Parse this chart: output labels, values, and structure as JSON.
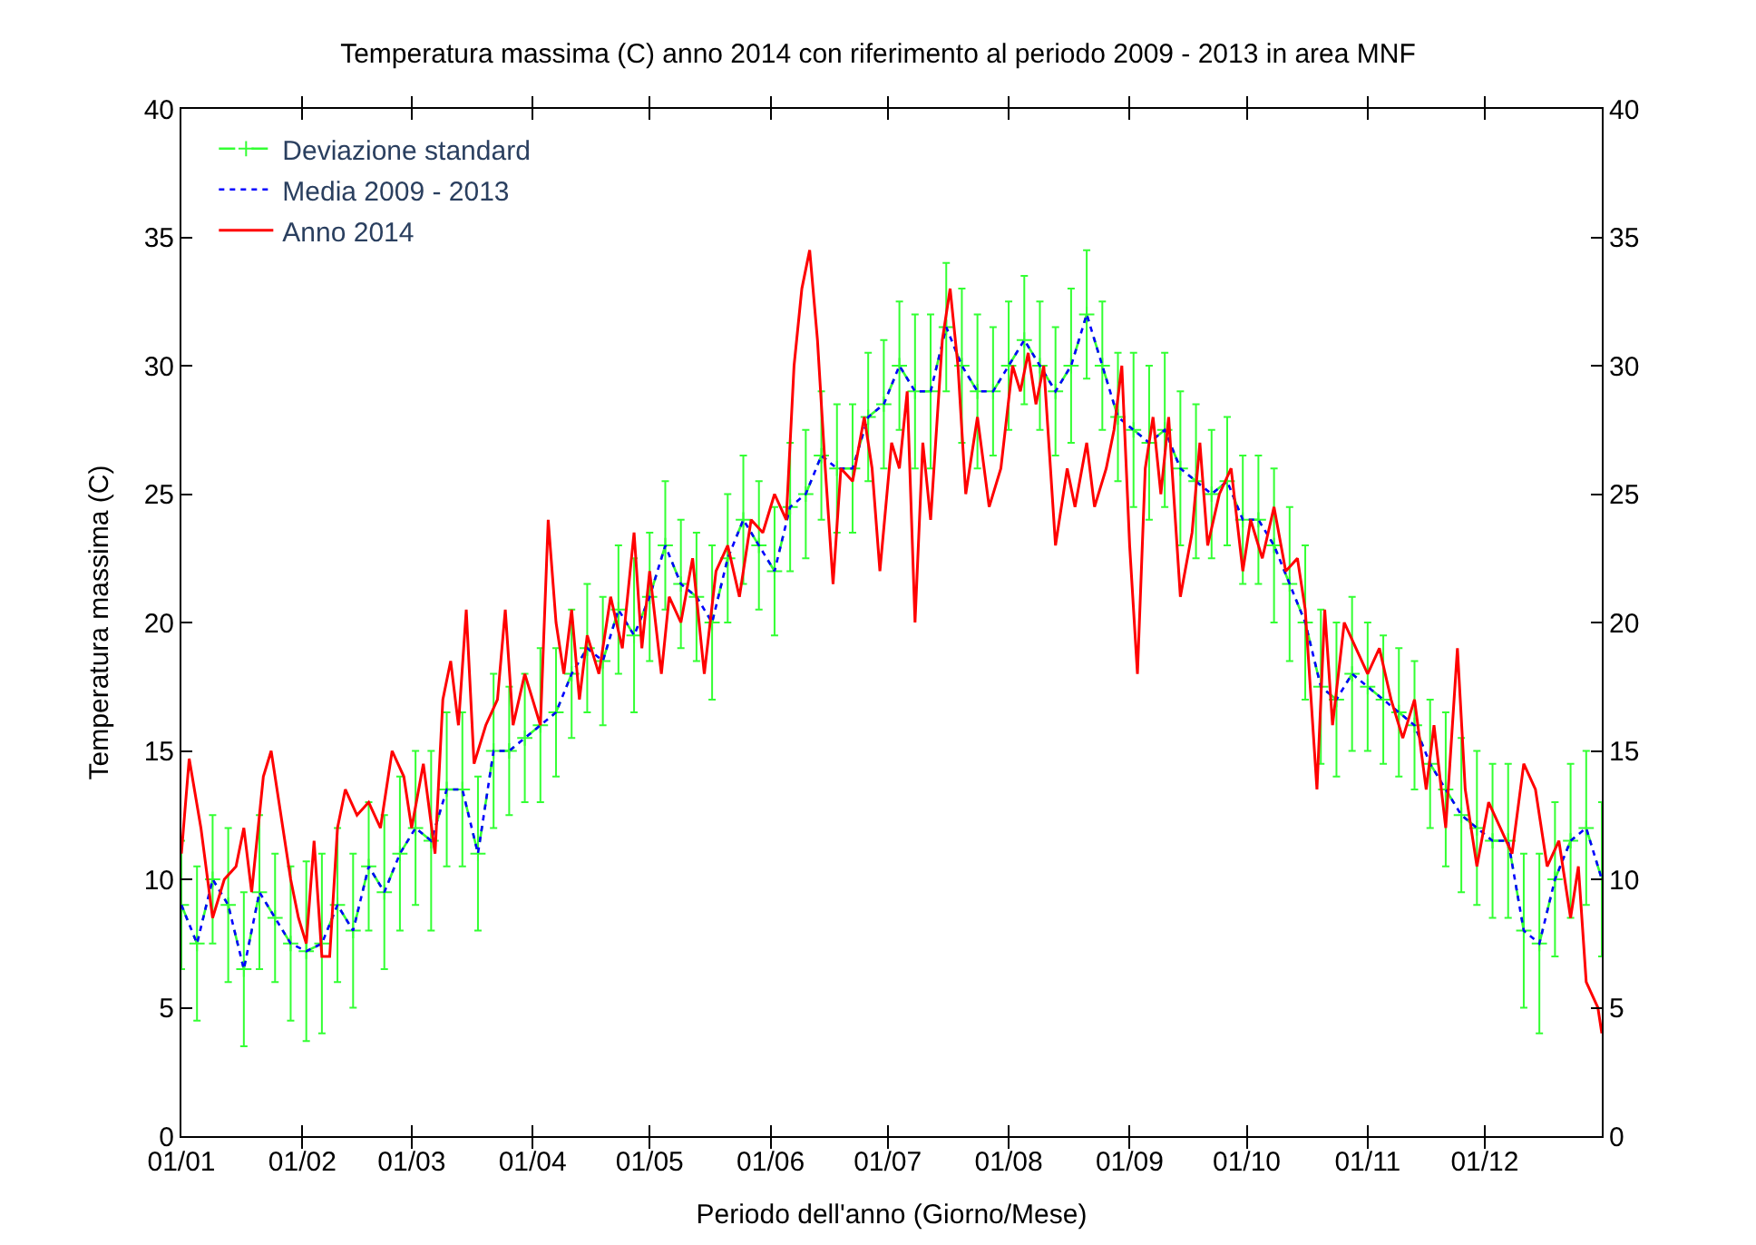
{
  "chart_data": {
    "type": "line",
    "title": "Temperatura massima (C) anno 2014 con riferimento al periodo 2009 - 2013 in area MNF",
    "xlabel": "Periodo dell'anno (Giorno/Mese)",
    "ylabel": "Temperatura massima (C)",
    "xlim": [
      "--01-01",
      "--12-31"
    ],
    "xticks": [
      {
        "value": "--01-01",
        "label": "01/01"
      },
      {
        "value": "--02-01",
        "label": "01/02"
      },
      {
        "value": "--03-01",
        "label": "01/03"
      },
      {
        "value": "--04-01",
        "label": "01/04"
      },
      {
        "value": "--05-01",
        "label": "01/05"
      },
      {
        "value": "--06-01",
        "label": "01/06"
      },
      {
        "value": "--07-01",
        "label": "01/07"
      },
      {
        "value": "--08-01",
        "label": "01/08"
      },
      {
        "value": "--09-01",
        "label": "01/09"
      },
      {
        "value": "--10-01",
        "label": "01/10"
      },
      {
        "value": "--11-01",
        "label": "01/11"
      },
      {
        "value": "--12-01",
        "label": "01/12"
      }
    ],
    "ylim": [
      0,
      40
    ],
    "yticks": [
      0,
      5,
      10,
      15,
      20,
      25,
      30,
      35,
      40
    ],
    "y2lim": [
      0,
      40
    ],
    "y2ticks": [
      0,
      5,
      10,
      15,
      20,
      25,
      30,
      35,
      40
    ],
    "grid": false,
    "legend": "top left",
    "series": [
      {
        "name": "Deviazione standard",
        "color": "#33ff33",
        "line_style": "dashed",
        "marker": "cross",
        "x": [
          "--01-01",
          "--01-05",
          "--01-09",
          "--01-13",
          "--01-17",
          "--01-21",
          "--01-25",
          "--01-29",
          "--02-02",
          "--02-06",
          "--02-10",
          "--02-14",
          "--02-18",
          "--02-22",
          "--02-26",
          "--03-02",
          "--03-06",
          "--03-10",
          "--03-14",
          "--03-18",
          "--03-22",
          "--03-26",
          "--03-30",
          "--04-03",
          "--04-07",
          "--04-11",
          "--04-15",
          "--04-19",
          "--04-23",
          "--04-27",
          "--05-01",
          "--05-05",
          "--05-09",
          "--05-13",
          "--05-17",
          "--05-21",
          "--05-25",
          "--05-29",
          "--06-02",
          "--06-06",
          "--06-10",
          "--06-14",
          "--06-18",
          "--06-22",
          "--06-26",
          "--06-30",
          "--07-04",
          "--07-08",
          "--07-12",
          "--07-16",
          "--07-20",
          "--07-24",
          "--07-28",
          "--08-01",
          "--08-05",
          "--08-09",
          "--08-13",
          "--08-17",
          "--08-21",
          "--08-25",
          "--08-29",
          "--09-02",
          "--09-06",
          "--09-10",
          "--09-14",
          "--09-18",
          "--09-22",
          "--09-26",
          "--09-30",
          "--10-04",
          "--10-08",
          "--10-12",
          "--10-16",
          "--10-20",
          "--10-24",
          "--10-28",
          "--11-01",
          "--11-05",
          "--11-09",
          "--11-13",
          "--11-17",
          "--11-21",
          "--11-25",
          "--11-29",
          "--12-03",
          "--12-07",
          "--12-11",
          "--12-15",
          "--12-19",
          "--12-23",
          "--12-27",
          "--12-31"
        ],
        "values": [
          9,
          7.5,
          10,
          9,
          6.5,
          9.5,
          8.5,
          7.5,
          7.2,
          7.5,
          9,
          8,
          10.5,
          9.5,
          11,
          12,
          11.5,
          13.5,
          13.5,
          11,
          15,
          15,
          15.5,
          16,
          16.5,
          18,
          19,
          18.5,
          20.5,
          19.5,
          21,
          23,
          21.5,
          21,
          20,
          22.5,
          24,
          23,
          22,
          24.5,
          25,
          26.5,
          26,
          26,
          28,
          28.5,
          30,
          29,
          29,
          31.5,
          30,
          29,
          29,
          30,
          31,
          30,
          29,
          30,
          32,
          30,
          28,
          27.5,
          27,
          27.5,
          26,
          25.5,
          25,
          25.5,
          24,
          24,
          23,
          21.5,
          20,
          17.5,
          17,
          18,
          17.5,
          17,
          16.5,
          16,
          14.5,
          13.5,
          12.5,
          12,
          11.5,
          11.5,
          8,
          7.5,
          10,
          11.5,
          12,
          10
        ],
        "errors": [
          2.5,
          3,
          2.5,
          3,
          3,
          3,
          2.5,
          3,
          3.5,
          3.5,
          3,
          3,
          2.5,
          3,
          3,
          3,
          3.5,
          3,
          3,
          3,
          3,
          2.5,
          2.5,
          3,
          2.5,
          2.5,
          2.5,
          2.5,
          2.5,
          3,
          2.5,
          2.5,
          2.5,
          2.5,
          3,
          2.5,
          2.5,
          2.5,
          2.5,
          2.5,
          2.5,
          2.5,
          2.5,
          2.5,
          2.5,
          2.5,
          2.5,
          3,
          3,
          2.5,
          3,
          3,
          2.5,
          2.5,
          2.5,
          2.5,
          2.5,
          3,
          2.5,
          2.5,
          2.5,
          3,
          3,
          3,
          3,
          3,
          2.5,
          2.5,
          2.5,
          2.5,
          3,
          3,
          3,
          3,
          3,
          3,
          2.5,
          2.5,
          2.5,
          2.5,
          2.5,
          3,
          3,
          3,
          3,
          3,
          3,
          3.5,
          3,
          3,
          3,
          3
        ]
      },
      {
        "name": "Media 2009 - 2013",
        "color": "#0000ff",
        "line_style": "dotted",
        "marker": "none",
        "x": [
          "--01-01",
          "--01-05",
          "--01-09",
          "--01-13",
          "--01-17",
          "--01-21",
          "--01-25",
          "--01-29",
          "--02-02",
          "--02-06",
          "--02-10",
          "--02-14",
          "--02-18",
          "--02-22",
          "--02-26",
          "--03-02",
          "--03-06",
          "--03-10",
          "--03-14",
          "--03-18",
          "--03-22",
          "--03-26",
          "--03-30",
          "--04-03",
          "--04-07",
          "--04-11",
          "--04-15",
          "--04-19",
          "--04-23",
          "--04-27",
          "--05-01",
          "--05-05",
          "--05-09",
          "--05-13",
          "--05-17",
          "--05-21",
          "--05-25",
          "--05-29",
          "--06-02",
          "--06-06",
          "--06-10",
          "--06-14",
          "--06-18",
          "--06-22",
          "--06-26",
          "--06-30",
          "--07-04",
          "--07-08",
          "--07-12",
          "--07-16",
          "--07-20",
          "--07-24",
          "--07-28",
          "--08-01",
          "--08-05",
          "--08-09",
          "--08-13",
          "--08-17",
          "--08-21",
          "--08-25",
          "--08-29",
          "--09-02",
          "--09-06",
          "--09-10",
          "--09-14",
          "--09-18",
          "--09-22",
          "--09-26",
          "--09-30",
          "--10-04",
          "--10-08",
          "--10-12",
          "--10-16",
          "--10-20",
          "--10-24",
          "--10-28",
          "--11-01",
          "--11-05",
          "--11-09",
          "--11-13",
          "--11-17",
          "--11-21",
          "--11-25",
          "--11-29",
          "--12-03",
          "--12-07",
          "--12-11",
          "--12-15",
          "--12-19",
          "--12-23",
          "--12-27",
          "--12-31"
        ],
        "values": [
          9,
          7.5,
          10,
          9,
          6.5,
          9.5,
          8.5,
          7.5,
          7.2,
          7.5,
          9,
          8,
          10.5,
          9.5,
          11,
          12,
          11.5,
          13.5,
          13.5,
          11,
          15,
          15,
          15.5,
          16,
          16.5,
          18,
          19,
          18.5,
          20.5,
          19.5,
          21,
          23,
          21.5,
          21,
          20,
          22.5,
          24,
          23,
          22,
          24.5,
          25,
          26.5,
          26,
          26,
          28,
          28.5,
          30,
          29,
          29,
          31.5,
          30,
          29,
          29,
          30,
          31,
          30,
          29,
          30,
          32,
          30,
          28,
          27.5,
          27,
          27.5,
          26,
          25.5,
          25,
          25.5,
          24,
          24,
          23,
          21.5,
          20,
          17.5,
          17,
          18,
          17.5,
          17,
          16.5,
          16,
          14.5,
          13.5,
          12.5,
          12,
          11.5,
          11.5,
          8,
          7.5,
          10,
          11.5,
          12,
          10
        ]
      },
      {
        "name": "Anno 2014",
        "color": "#ff0000",
        "line_style": "solid",
        "marker": "none",
        "x": [
          "--01-01",
          "--01-03",
          "--01-06",
          "--01-09",
          "--01-12",
          "--01-15",
          "--01-17",
          "--01-19",
          "--01-22",
          "--01-24",
          "--01-26",
          "--01-29",
          "--01-31",
          "--02-02",
          "--02-04",
          "--02-06",
          "--02-08",
          "--02-10",
          "--02-12",
          "--02-15",
          "--02-18",
          "--02-21",
          "--02-24",
          "--02-27",
          "--03-01",
          "--03-04",
          "--03-07",
          "--03-09",
          "--03-11",
          "--03-13",
          "--03-15",
          "--03-17",
          "--03-20",
          "--03-23",
          "--03-25",
          "--03-27",
          "--03-30",
          "--04-01",
          "--04-03",
          "--04-05",
          "--04-07",
          "--04-09",
          "--04-11",
          "--04-13",
          "--04-15",
          "--04-18",
          "--04-21",
          "--04-24",
          "--04-27",
          "--04-29",
          "--05-01",
          "--05-04",
          "--05-06",
          "--05-09",
          "--05-12",
          "--05-15",
          "--05-18",
          "--05-21",
          "--05-24",
          "--05-27",
          "--05-30",
          "--06-02",
          "--06-05",
          "--06-07",
          "--06-09",
          "--06-11",
          "--06-13",
          "--06-15",
          "--06-17",
          "--06-19",
          "--06-22",
          "--06-25",
          "--06-27",
          "--06-29",
          "--07-02",
          "--07-04",
          "--07-06",
          "--07-08",
          "--07-10",
          "--07-12",
          "--07-15",
          "--07-17",
          "--07-19",
          "--07-21",
          "--07-24",
          "--07-27",
          "--07-30",
          "--08-02",
          "--08-04",
          "--08-06",
          "--08-08",
          "--08-10",
          "--08-13",
          "--08-16",
          "--08-18",
          "--08-21",
          "--08-23",
          "--08-26",
          "--08-28",
          "--08-30",
          "--09-01",
          "--09-03",
          "--09-05",
          "--09-07",
          "--09-09",
          "--09-11",
          "--09-14",
          "--09-17",
          "--09-19",
          "--09-21",
          "--09-24",
          "--09-27",
          "--09-30",
          "--10-02",
          "--10-05",
          "--10-08",
          "--10-11",
          "--10-14",
          "--10-16",
          "--10-19",
          "--10-21",
          "--10-23",
          "--10-26",
          "--10-29",
          "--11-01",
          "--11-04",
          "--11-07",
          "--11-10",
          "--11-13",
          "--11-16",
          "--11-18",
          "--11-21",
          "--11-24",
          "--11-26",
          "--11-29",
          "--12-02",
          "--12-05",
          "--12-08",
          "--12-11",
          "--12-14",
          "--12-17",
          "--12-20",
          "--12-23",
          "--12-25",
          "--12-27",
          "--12-30",
          "--12-31"
        ],
        "values": [
          11,
          14.7,
          12,
          8.5,
          10,
          10.5,
          12,
          9.5,
          14,
          15,
          13,
          10,
          8.5,
          7.5,
          11.5,
          7,
          7,
          12,
          13.5,
          12.5,
          13,
          12,
          15,
          14,
          12,
          14.5,
          11,
          17,
          18.5,
          16,
          20.5,
          14.5,
          16,
          17,
          20.5,
          16,
          18,
          17,
          16,
          24,
          20,
          18,
          20.5,
          17,
          19.5,
          18,
          21,
          19,
          23.5,
          19,
          22,
          18,
          21,
          20,
          22.5,
          18,
          22,
          23,
          21,
          24,
          23.5,
          25,
          24,
          30,
          33,
          34.5,
          31,
          26,
          21.5,
          26,
          25.5,
          28,
          26,
          22,
          27,
          26,
          29,
          20,
          27,
          24,
          31,
          33,
          30,
          25,
          28,
          24.5,
          26,
          30,
          29,
          30.5,
          28.5,
          30,
          23,
          26,
          24.5,
          27,
          24.5,
          26,
          27.5,
          30,
          23,
          18,
          26,
          28,
          25,
          28,
          21,
          23.5,
          27,
          23,
          25,
          26,
          22,
          24,
          22.5,
          24.5,
          22,
          22.5,
          20.5,
          13.5,
          20.5,
          16,
          20,
          19,
          18,
          19,
          17,
          15.5,
          17,
          13.5,
          16,
          12,
          19,
          13.5,
          10.5,
          13,
          12,
          11,
          14.5,
          13.5,
          10.5,
          11.5,
          8.5,
          10.5,
          6,
          5,
          4
        ]
      }
    ]
  }
}
